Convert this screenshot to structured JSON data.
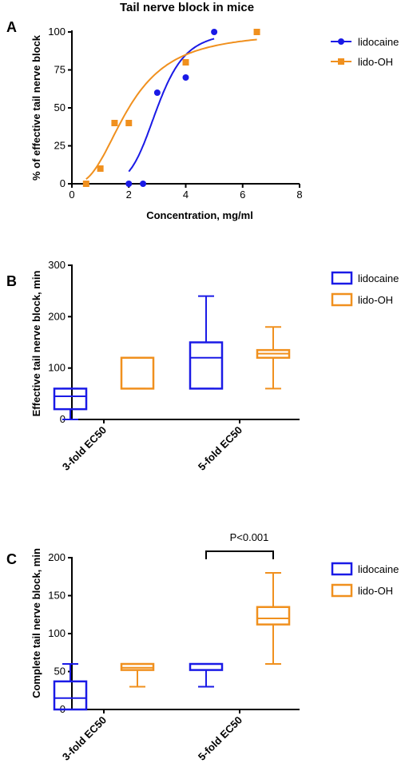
{
  "colors": {
    "lidocaine": "#1a1ae6",
    "lido_oh": "#f0901e",
    "axis": "#000000"
  },
  "chart_data": [
    {
      "panel": "A",
      "type": "scatter",
      "title": "Tail nerve block in mice",
      "xlabel": "Concentration, mg/ml",
      "ylabel": "% of effective tail nerve block",
      "xlim": [
        0,
        8
      ],
      "ylim": [
        0,
        100
      ],
      "xticks": [
        "0",
        "2",
        "4",
        "6",
        "8"
      ],
      "yticks": [
        "0",
        "25",
        "50",
        "75",
        "100"
      ],
      "legend_position": "top-right",
      "series": [
        {
          "name": "lidocaine",
          "marker": "circle",
          "points": [
            [
              2,
              0
            ],
            [
              2.5,
              0
            ],
            [
              3,
              60
            ],
            [
              4,
              70
            ],
            [
              5,
              100
            ]
          ],
          "fit_curve": {
            "ec50": 3.0,
            "hill": 6.0,
            "top": 100,
            "x_range": [
              2,
              5
            ]
          }
        },
        {
          "name": "lido-OH",
          "marker": "square",
          "points": [
            [
              0.5,
              0
            ],
            [
              1,
              10
            ],
            [
              1.5,
              40
            ],
            [
              2,
              40
            ],
            [
              4,
              80
            ],
            [
              6.5,
              100
            ]
          ],
          "fit_curve": {
            "ec50": 2.0,
            "hill": 2.5,
            "top": 100,
            "x_range": [
              0.5,
              6.5
            ]
          }
        }
      ]
    },
    {
      "panel": "B",
      "type": "boxplot",
      "ylabel": "Effective tail nerve block, min",
      "ylim": [
        0,
        300
      ],
      "yticks": [
        "0",
        "100",
        "200",
        "300"
      ],
      "categories": [
        "3-fold EC50",
        "5-fold EC50"
      ],
      "legend_position": "top-right",
      "series": [
        {
          "name": "lidocaine",
          "boxes": [
            {
              "min": 0,
              "q1": 20,
              "median": 45,
              "q3": 60,
              "max": 60
            },
            {
              "min": 60,
              "q1": 60,
              "median": 120,
              "q3": 150,
              "max": 240
            }
          ]
        },
        {
          "name": "lido-OH",
          "boxes": [
            {
              "min": 60,
              "q1": 60,
              "median": 120,
              "q3": 120,
              "max": 120
            },
            {
              "min": 60,
              "q1": 120,
              "median": 128,
              "q3": 135,
              "max": 180
            }
          ]
        }
      ]
    },
    {
      "panel": "C",
      "type": "boxplot",
      "ylabel": "Complete tail nerve block, min",
      "ylim": [
        0,
        200
      ],
      "yticks": [
        "0",
        "50",
        "100",
        "150",
        "200"
      ],
      "categories": [
        "3-fold EC50",
        "5-fold EC50"
      ],
      "legend_position": "top-right",
      "annotation": {
        "text": "P<0.001",
        "category": "5-fold EC50"
      },
      "series": [
        {
          "name": "lidocaine",
          "boxes": [
            {
              "min": 0,
              "q1": 0,
              "median": 15,
              "q3": 37,
              "max": 60
            },
            {
              "min": 30,
              "q1": 52,
              "median": 60,
              "q3": 60,
              "max": 60
            }
          ]
        },
        {
          "name": "lido-OH",
          "boxes": [
            {
              "min": 30,
              "q1": 52,
              "median": 55,
              "q3": 60,
              "max": 60
            },
            {
              "min": 60,
              "q1": 112,
              "median": 120,
              "q3": 135,
              "max": 180
            }
          ]
        }
      ]
    }
  ]
}
